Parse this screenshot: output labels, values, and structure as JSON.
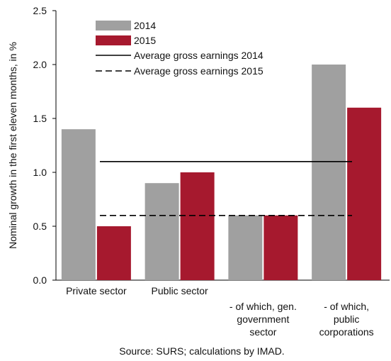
{
  "chart_data": {
    "type": "bar",
    "categories": [
      [
        "Private sector"
      ],
      [
        "Public sector"
      ],
      [
        "- of which, gen.",
        "government",
        "sector"
      ],
      [
        "- of which,",
        "public",
        "corporations"
      ]
    ],
    "series": [
      {
        "name": "2014",
        "values": [
          1.4,
          0.9,
          0.6,
          2.0
        ],
        "color": "#a0a0a0"
      },
      {
        "name": "2015",
        "values": [
          0.5,
          1.0,
          0.6,
          1.6
        ],
        "color": "#a6192e"
      }
    ],
    "reference_lines": [
      {
        "name": "Average gross earnings 2014",
        "value": 1.1,
        "style": "solid",
        "color": "#000000"
      },
      {
        "name": "Average gross earnings 2015",
        "value": 0.6,
        "style": "dashed",
        "color": "#000000"
      }
    ],
    "ylabel": "Nominal growth in the first eleven months, in %",
    "ylim": [
      0,
      2.5
    ],
    "yticks": [
      "0.0",
      "0.5",
      "1.0",
      "1.5",
      "2.0",
      "2.5"
    ],
    "grid": false,
    "legend_position": "top-left",
    "source": "Source: SURS; calculations by IMAD."
  }
}
